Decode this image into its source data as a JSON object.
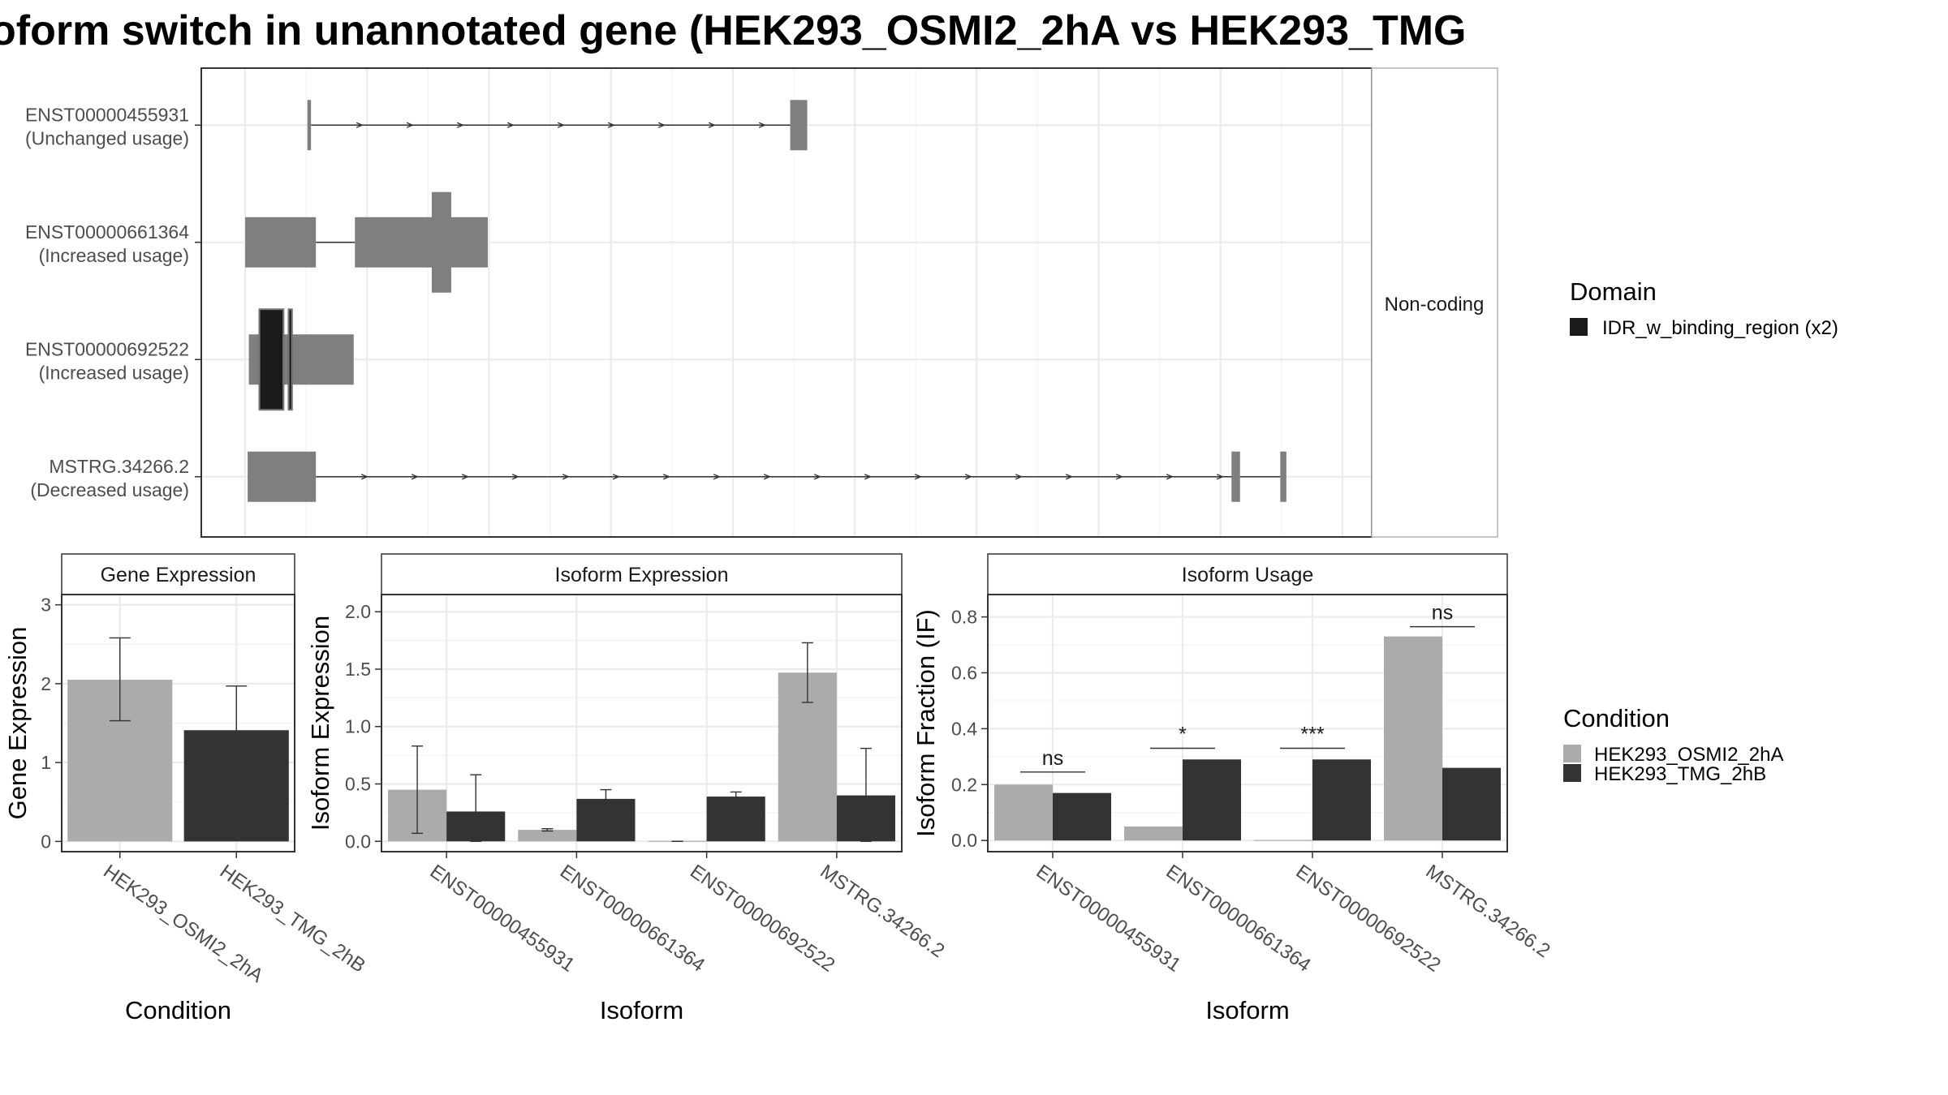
{
  "title": "oform switch in unannotated gene (HEK293_OSMI2_2hA vs HEK293_TMG",
  "colors": {
    "osmi": "#ababab",
    "tmg": "#333333",
    "exon": "#7f7f7f",
    "domain": "#1a1a1a",
    "grid": "#ebebeb"
  },
  "chart_data": [
    {
      "type": "other",
      "name": "isoform-structure",
      "strip": "Non-coding",
      "legend": {
        "title": "Domain",
        "items": [
          "IDR_w_binding_region (x2)"
        ]
      },
      "isoforms": [
        {
          "id": "ENST00000455931",
          "status": "(Unchanged usage)",
          "exons": [
            [
              0.12,
              0.15
            ],
            [
              4.08,
              4.22
            ]
          ],
          "cds": [],
          "domains": [],
          "intron": [
            0.15,
            4.08
          ]
        },
        {
          "id": "ENST00000661364",
          "status": "(Increased usage)",
          "exons": [
            [
              -0.39,
              0.19
            ],
            [
              0.51,
              1.6
            ]
          ],
          "cds": [
            [
              1.14,
              1.3
            ]
          ],
          "domains": [],
          "intron": [
            0.19,
            0.51
          ]
        },
        {
          "id": "ENST00000692522",
          "status": "(Increased usage)",
          "exons": [
            [
              -0.36,
              0.5
            ]
          ],
          "cds": [],
          "domains": [
            [
              -0.28,
              -0.07
            ],
            [
              -0.04,
              0.0
            ]
          ],
          "intron": null
        },
        {
          "id": "MSTRG.34266.2",
          "status": "(Decreased usage)",
          "exons": [
            [
              -0.37,
              0.19
            ],
            [
              7.7,
              7.77
            ],
            [
              8.1,
              8.15
            ]
          ],
          "cds": [],
          "domains": [],
          "intron": [
            0.19,
            8.1
          ]
        }
      ],
      "xlim": [
        -0.75,
        8.85
      ],
      "xgrid": [
        -0.39,
        0.61,
        1.61,
        2.61,
        3.61,
        4.61,
        5.61,
        6.61,
        7.61,
        8.61
      ]
    },
    {
      "type": "bar",
      "title": "Gene Expression",
      "xlabel": "Condition",
      "ylabel": "Gene Expression",
      "categories": [
        "HEK293_OSMI2_2hA",
        "HEK293_TMG_2hB"
      ],
      "values": [
        2.05,
        1.41
      ],
      "err_low": [
        1.53,
        0.84
      ],
      "err_high": [
        2.58,
        1.97
      ],
      "ylim": [
        -0.13,
        3.13
      ],
      "yticks": [
        0,
        1,
        2,
        3
      ],
      "ytick_labels": [
        "0",
        "1",
        "2",
        "3"
      ]
    },
    {
      "type": "bar",
      "title": "Isoform Expression",
      "xlabel": "Isoform",
      "ylabel": "Isoform Expression",
      "categories": [
        "ENST00000455931",
        "ENST00000661364",
        "ENST00000692522",
        "MSTRG.34266.2"
      ],
      "series": [
        {
          "name": "HEK293_OSMI2_2hA",
          "values": [
            0.45,
            0.1,
            0.0,
            1.47
          ],
          "err_low": [
            0.07,
            0.09,
            0.0,
            1.21
          ],
          "err_high": [
            0.83,
            0.11,
            0.0,
            1.73
          ]
        },
        {
          "name": "HEK293_TMG_2hB",
          "values": [
            0.26,
            0.37,
            0.39,
            0.4
          ],
          "err_low": [
            0.0,
            0.29,
            0.35,
            0.0
          ],
          "err_high": [
            0.58,
            0.45,
            0.43,
            0.81
          ]
        }
      ],
      "ylim": [
        -0.09,
        2.15
      ],
      "yticks": [
        0,
        0.5,
        1,
        1.5,
        2
      ],
      "ytick_labels": [
        "0.0",
        "0.5",
        "1.0",
        "1.5",
        "2.0"
      ]
    },
    {
      "type": "bar",
      "title": "Isoform Usage",
      "xlabel": "Isoform",
      "ylabel": "Isoform Fraction (IF)",
      "categories": [
        "ENST00000455931",
        "ENST00000661364",
        "ENST00000692522",
        "MSTRG.34266.2"
      ],
      "series": [
        {
          "name": "HEK293_OSMI2_2hA",
          "values": [
            0.2,
            0.05,
            0.0,
            0.73
          ]
        },
        {
          "name": "HEK293_TMG_2hB",
          "values": [
            0.17,
            0.29,
            0.29,
            0.26
          ]
        }
      ],
      "significance": [
        "ns",
        "*",
        "***",
        "ns"
      ],
      "sig_level": [
        0.245,
        0.33,
        0.33,
        0.765
      ],
      "ylim": [
        -0.04,
        0.88
      ],
      "yticks": [
        0,
        0.2,
        0.4,
        0.6,
        0.8
      ],
      "ytick_labels": [
        "0.0",
        "0.2",
        "0.4",
        "0.6",
        "0.8"
      ]
    }
  ],
  "legend_condition": {
    "title": "Condition",
    "items": [
      "HEK293_OSMI2_2hA",
      "HEK293_TMG_2hB"
    ]
  }
}
